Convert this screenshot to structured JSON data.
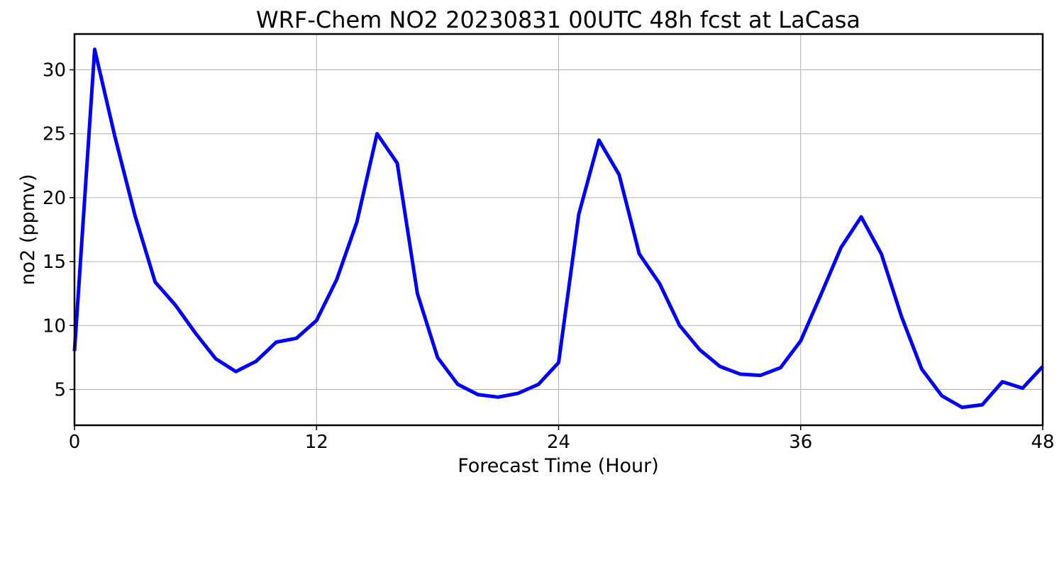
{
  "chart_data": {
    "type": "line",
    "title": "WRF-Chem NO2  20230831 00UTC 48h fcst at LaCasa",
    "xlabel": "Forecast Time (Hour)",
    "ylabel": "no2  (ppmv)",
    "xlim": [
      0,
      48
    ],
    "ylim": [
      2.2,
      32.8
    ],
    "xticks": [
      0,
      12,
      24,
      36,
      48
    ],
    "yticks": [
      5,
      10,
      15,
      20,
      25,
      30
    ],
    "grid": true,
    "line_color": "#0000ff",
    "x": [
      0,
      1,
      2,
      3,
      4,
      5,
      6,
      7,
      8,
      9,
      10,
      11,
      12,
      13,
      14,
      15,
      16,
      17,
      18,
      19,
      20,
      21,
      22,
      23,
      24,
      25,
      26,
      27,
      28,
      29,
      30,
      31,
      32,
      33,
      34,
      35,
      36,
      37,
      38,
      39,
      40,
      41,
      42,
      43,
      44,
      45,
      46,
      47,
      48
    ],
    "series": [
      {
        "values": [
          8.0,
          31.6,
          24.8,
          18.6,
          13.4,
          11.6,
          9.4,
          7.4,
          6.4,
          7.2,
          8.7,
          9.0,
          10.4,
          13.6,
          18.1,
          25.0,
          22.7,
          12.5,
          7.5,
          5.4,
          4.6,
          4.4,
          4.7,
          5.4,
          7.1,
          18.7,
          24.5,
          21.8,
          15.6,
          13.3,
          10.0,
          8.1,
          6.8,
          6.2,
          6.1,
          6.7,
          8.8,
          12.4,
          16.1,
          18.5,
          15.6,
          10.7,
          6.6,
          4.5,
          3.6,
          3.8,
          5.6,
          5.1,
          6.8
        ]
      }
    ]
  }
}
